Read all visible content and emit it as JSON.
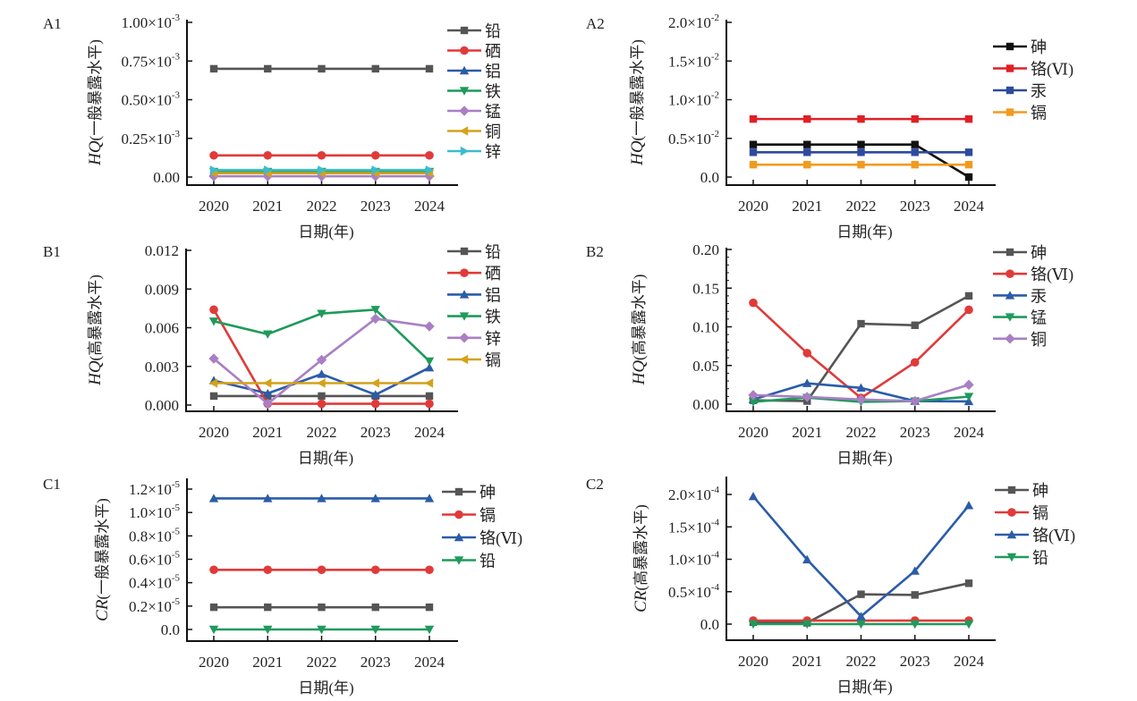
{
  "figure": {
    "x_categories": [
      "2020",
      "2021",
      "2022",
      "2023",
      "2024"
    ]
  },
  "chart_data": [
    {
      "id": "A1",
      "panel_label": "A1",
      "type": "line",
      "title": "",
      "xlabel": "日期(年)",
      "ylabel_var": "HQ",
      "ylabel_text": "(一般暴露水平)",
      "ylim": [
        0,
        0.001
      ],
      "yticks": [
        0,
        0.00025,
        0.0005,
        0.00075,
        0.001
      ],
      "ytick_labels": [
        {
          "mantissa": "0.00",
          "exp": ""
        },
        {
          "mantissa": "0.25×10",
          "exp": "-3"
        },
        {
          "mantissa": "0.50×10",
          "exp": "-3"
        },
        {
          "mantissa": "0.75×10",
          "exp": "-3"
        },
        {
          "mantissa": "1.00×10",
          "exp": "-3"
        }
      ],
      "categories": [
        "2020",
        "2021",
        "2022",
        "2023",
        "2024"
      ],
      "legend": "top-right",
      "grid": false,
      "series": [
        {
          "name": "铅",
          "color": "#555555",
          "marker": "square",
          "values": [
            0.0007,
            0.0007,
            0.0007,
            0.0007,
            0.0007
          ]
        },
        {
          "name": "硒",
          "color": "#e03a3a",
          "marker": "circle",
          "values": [
            0.00014,
            0.00014,
            0.00014,
            0.00014,
            0.00014
          ]
        },
        {
          "name": "铝",
          "color": "#2b5ca8",
          "marker": "triangle-up",
          "values": [
            3e-05,
            3e-05,
            3e-05,
            3e-05,
            3e-05
          ]
        },
        {
          "name": "铁",
          "color": "#1f9a5b",
          "marker": "triangle-down",
          "values": [
            3.5e-05,
            3.5e-05,
            3.5e-05,
            3.5e-05,
            3.5e-05
          ]
        },
        {
          "name": "锰",
          "color": "#a97fc4",
          "marker": "diamond",
          "values": [
            5e-06,
            5e-06,
            5e-06,
            5e-06,
            5e-06
          ]
        },
        {
          "name": "铜",
          "color": "#d4a21a",
          "marker": "triangle-left",
          "values": [
            2.5e-05,
            2.5e-05,
            2.5e-05,
            2.5e-05,
            2.5e-05
          ]
        },
        {
          "name": "锌",
          "color": "#3dbccb",
          "marker": "triangle-right",
          "values": [
            4.5e-05,
            4.5e-05,
            4.5e-05,
            4.5e-05,
            4.5e-05
          ]
        }
      ]
    },
    {
      "id": "A2",
      "panel_label": "A2",
      "type": "line",
      "title": "",
      "xlabel": "日期(年)",
      "ylabel_var": "HQ",
      "ylabel_text": "(一般暴露水平)",
      "ylim": [
        0,
        0.02
      ],
      "yticks": [
        0,
        0.005,
        0.01,
        0.015,
        0.02
      ],
      "ytick_labels": [
        {
          "mantissa": "0.0",
          "exp": ""
        },
        {
          "mantissa": "0.5×10",
          "exp": "-2"
        },
        {
          "mantissa": "1.0×10",
          "exp": "-2"
        },
        {
          "mantissa": "1.5×10",
          "exp": "-2"
        },
        {
          "mantissa": "2.0×10",
          "exp": "-2"
        }
      ],
      "categories": [
        "2020",
        "2021",
        "2022",
        "2023",
        "2024"
      ],
      "legend": "right",
      "grid": false,
      "series": [
        {
          "name": "砷",
          "color": "#111111",
          "marker": "square",
          "values": [
            0.0042,
            0.0042,
            0.0042,
            0.0042,
            0.0
          ]
        },
        {
          "name": "铬(Ⅵ)",
          "color": "#e01f26",
          "marker": "square",
          "values": [
            0.0075,
            0.0075,
            0.0075,
            0.0075,
            0.0075
          ]
        },
        {
          "name": "汞",
          "color": "#2e4a9e",
          "marker": "square",
          "values": [
            0.0032,
            0.0032,
            0.0032,
            0.0032,
            0.0032
          ]
        },
        {
          "name": "镉",
          "color": "#f29a1f",
          "marker": "square",
          "values": [
            0.0016,
            0.0016,
            0.0016,
            0.0016,
            0.0016
          ]
        }
      ]
    },
    {
      "id": "B1",
      "panel_label": "B1",
      "type": "line",
      "title": "",
      "xlabel": "日期(年)",
      "ylabel_var": "HQ",
      "ylabel_text": "(高暴露水平)",
      "ylim": [
        0,
        0.012
      ],
      "yticks": [
        0,
        0.003,
        0.006,
        0.009,
        0.012
      ],
      "ytick_labels": [
        {
          "mantissa": "0.000",
          "exp": ""
        },
        {
          "mantissa": "0.003",
          "exp": ""
        },
        {
          "mantissa": "0.006",
          "exp": ""
        },
        {
          "mantissa": "0.009",
          "exp": ""
        },
        {
          "mantissa": "0.012",
          "exp": ""
        }
      ],
      "categories": [
        "2020",
        "2021",
        "2022",
        "2023",
        "2024"
      ],
      "legend": "top-right",
      "grid": false,
      "series": [
        {
          "name": "铅",
          "color": "#555555",
          "marker": "square",
          "values": [
            0.0007,
            0.0007,
            0.0007,
            0.0007,
            0.0007
          ]
        },
        {
          "name": "硒",
          "color": "#e03a3a",
          "marker": "circle",
          "values": [
            0.0074,
            0.0001,
            0.0001,
            0.0001,
            0.0001
          ]
        },
        {
          "name": "铝",
          "color": "#2b5ca8",
          "marker": "triangle-up",
          "values": [
            0.0019,
            0.0009,
            0.0024,
            0.0008,
            0.0029
          ]
        },
        {
          "name": "铁",
          "color": "#1f9a5b",
          "marker": "triangle-down",
          "values": [
            0.0065,
            0.0055,
            0.0071,
            0.0074,
            0.0034
          ]
        },
        {
          "name": "锌",
          "color": "#a97fc4",
          "marker": "diamond",
          "values": [
            0.0036,
            0.0001,
            0.0035,
            0.0067,
            0.0061
          ]
        },
        {
          "name": "镉",
          "color": "#d4a21a",
          "marker": "triangle-left",
          "values": [
            0.0017,
            0.0017,
            0.0017,
            0.0017,
            0.0017
          ]
        }
      ]
    },
    {
      "id": "B2",
      "panel_label": "B2",
      "type": "line",
      "title": "",
      "xlabel": "日期(年)",
      "ylabel_var": "HQ",
      "ylabel_text": "(高暴露水平)",
      "ylim": [
        0,
        0.2
      ],
      "yticks": [
        0,
        0.05,
        0.1,
        0.15,
        0.2
      ],
      "ytick_labels": [
        {
          "mantissa": "0.00",
          "exp": ""
        },
        {
          "mantissa": "0.05",
          "exp": ""
        },
        {
          "mantissa": "0.10",
          "exp": ""
        },
        {
          "mantissa": "0.15",
          "exp": ""
        },
        {
          "mantissa": "0.20",
          "exp": ""
        }
      ],
      "categories": [
        "2020",
        "2021",
        "2022",
        "2023",
        "2024"
      ],
      "legend": "top-right",
      "grid": false,
      "series": [
        {
          "name": "砷",
          "color": "#555555",
          "marker": "square",
          "values": [
            0.005,
            0.004,
            0.104,
            0.102,
            0.14
          ]
        },
        {
          "name": "铬(Ⅵ)",
          "color": "#e03a3a",
          "marker": "circle",
          "values": [
            0.131,
            0.066,
            0.008,
            0.054,
            0.122
          ]
        },
        {
          "name": "汞",
          "color": "#2b5ca8",
          "marker": "triangle-up",
          "values": [
            0.006,
            0.027,
            0.021,
            0.004,
            0.0035
          ]
        },
        {
          "name": "锰",
          "color": "#1f9a5b",
          "marker": "triangle-down",
          "values": [
            0.003,
            0.0085,
            0.003,
            0.004,
            0.0097
          ]
        },
        {
          "name": "铜",
          "color": "#a97fc4",
          "marker": "diamond",
          "values": [
            0.0117,
            0.0093,
            0.006,
            0.004,
            0.025
          ]
        }
      ]
    },
    {
      "id": "C1",
      "panel_label": "C1",
      "type": "line",
      "title": "",
      "xlabel": "日期(年)",
      "ylabel_var": "CR",
      "ylabel_text": "(一般暴露水平)",
      "ylim": [
        0,
        1.2e-05
      ],
      "yticks": [
        0,
        2e-06,
        4e-06,
        6e-06,
        8e-06,
        1e-05,
        1.2e-05
      ],
      "ytick_labels": [
        {
          "mantissa": "0.0",
          "exp": ""
        },
        {
          "mantissa": "0.2×10",
          "exp": "-5"
        },
        {
          "mantissa": "0.4×10",
          "exp": "-5"
        },
        {
          "mantissa": "0.6×10",
          "exp": "-5"
        },
        {
          "mantissa": "0.8×10",
          "exp": "-5"
        },
        {
          "mantissa": "1.0×10",
          "exp": "-5"
        },
        {
          "mantissa": "1.2×10",
          "exp": "-5"
        }
      ],
      "categories": [
        "2020",
        "2021",
        "2022",
        "2023",
        "2024"
      ],
      "legend": "top-right",
      "grid": false,
      "series": [
        {
          "name": "砷",
          "color": "#555555",
          "marker": "square",
          "values": [
            1.9e-06,
            1.9e-06,
            1.9e-06,
            1.9e-06,
            1.9e-06
          ]
        },
        {
          "name": "镉",
          "color": "#e03a3a",
          "marker": "circle",
          "values": [
            5.1e-06,
            5.1e-06,
            5.1e-06,
            5.1e-06,
            5.1e-06
          ]
        },
        {
          "name": "铬(Ⅵ)",
          "color": "#2b5ca8",
          "marker": "triangle-up",
          "values": [
            1.12e-05,
            1.12e-05,
            1.12e-05,
            1.12e-05,
            1.12e-05
          ]
        },
        {
          "name": "铅",
          "color": "#1f9a5b",
          "marker": "triangle-down",
          "values": [
            0.0,
            0.0,
            0.0,
            0.0,
            0.0
          ]
        }
      ]
    },
    {
      "id": "C2",
      "panel_label": "C2",
      "type": "line",
      "title": "",
      "xlabel": "日期(年)",
      "ylabel_var": "CR",
      "ylabel_text": "(高暴露水平)",
      "ylim": [
        0,
        0.0002
      ],
      "yticks": [
        0,
        5e-05,
        0.0001,
        0.00015,
        0.0002
      ],
      "ytick_labels": [
        {
          "mantissa": "0.0",
          "exp": ""
        },
        {
          "mantissa": "0.5×10",
          "exp": "-4"
        },
        {
          "mantissa": "1.0×10",
          "exp": "-4"
        },
        {
          "mantissa": "1.5×10",
          "exp": "-4"
        },
        {
          "mantissa": "2.0×10",
          "exp": "-4"
        }
      ],
      "categories": [
        "2020",
        "2021",
        "2022",
        "2023",
        "2024"
      ],
      "legend": "top-right",
      "grid": false,
      "series": [
        {
          "name": "砷",
          "color": "#555555",
          "marker": "square",
          "values": [
            3e-06,
            2e-06,
            4.6e-05,
            4.5e-05,
            6.3e-05
          ]
        },
        {
          "name": "镉",
          "color": "#e03a3a",
          "marker": "circle",
          "values": [
            5.5e-06,
            5.5e-06,
            5.5e-06,
            5.5e-06,
            5.5e-06
          ]
        },
        {
          "name": "铬(Ⅵ)",
          "color": "#2b5ca8",
          "marker": "triangle-up",
          "values": [
            0.000197,
            9.95e-05,
            1.2e-05,
            8.2e-05,
            0.000183
          ]
        },
        {
          "name": "铅",
          "color": "#1f9a5b",
          "marker": "triangle-down",
          "values": [
            0.0,
            0.0,
            0.0,
            0.0,
            0.0
          ]
        }
      ]
    }
  ]
}
